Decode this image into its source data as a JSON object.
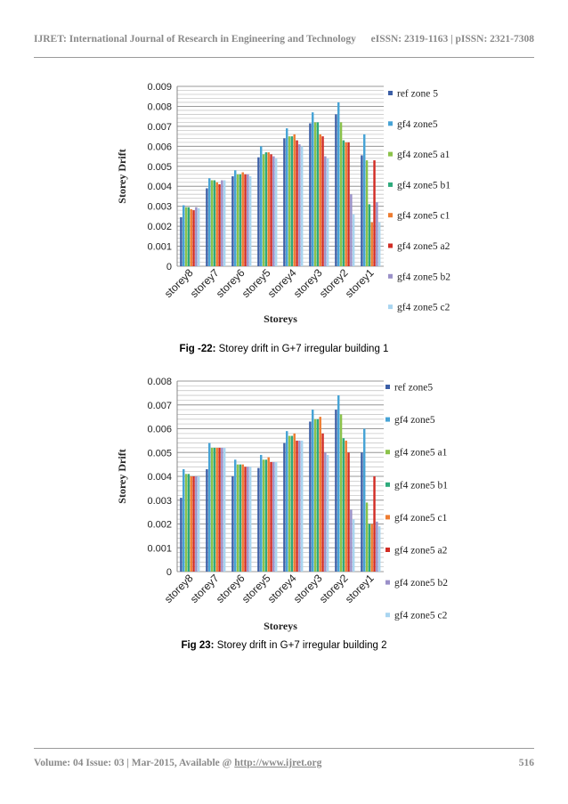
{
  "header": {
    "journal": "IJRET: International Journal of Research in Engineering and Technology",
    "issn": "eISSN: 2319-1163 | pISSN: 2321-7308"
  },
  "footer": {
    "volume_prefix": "Volume: 04 Issue: 03 | Mar-2015, Available @ ",
    "url": "http://www.ijret.org",
    "page": "516"
  },
  "chart_data": [
    {
      "type": "bar",
      "caption_label": "Fig -22:",
      "caption_text": " Storey drift in G+7 irregular building 1",
      "xlabel": "Storeys",
      "ylabel": "Storey Drift",
      "ylim": [
        0,
        0.009
      ],
      "ytick_step": 0.001,
      "yticks": [
        "0",
        "0.001",
        "0.002",
        "0.003",
        "0.004",
        "0.005",
        "0.006",
        "0.007",
        "0.008",
        "0.009"
      ],
      "grid": true,
      "legend": "right",
      "categories": [
        "storey8",
        "storey7",
        "storey6",
        "storey5",
        "storey4",
        "storey3",
        "storey2",
        "storey1"
      ],
      "series": [
        {
          "name": "ref zone 5",
          "color": "#3c5fa6",
          "values": [
            0.00245,
            0.0039,
            0.0045,
            0.00545,
            0.0064,
            0.00715,
            0.0076,
            0.00555
          ]
        },
        {
          "name": "gf4 zone5",
          "color": "#46a3d6",
          "values": [
            0.00305,
            0.0044,
            0.0048,
            0.006,
            0.0069,
            0.0077,
            0.0082,
            0.0066
          ]
        },
        {
          "name": "gf4 zone5 a1",
          "color": "#8cc34a",
          "values": [
            0.00295,
            0.0043,
            0.0046,
            0.0056,
            0.0065,
            0.0072,
            0.0072,
            0.0053
          ]
        },
        {
          "name": "gf4 zone5 b1",
          "color": "#2eaa7c",
          "values": [
            0.00295,
            0.0043,
            0.0046,
            0.0057,
            0.0065,
            0.0072,
            0.0063,
            0.0031
          ]
        },
        {
          "name": "gf4 zone5 c1",
          "color": "#ee7c30",
          "values": [
            0.00285,
            0.0042,
            0.0047,
            0.0057,
            0.0066,
            0.0066,
            0.0062,
            0.0022
          ]
        },
        {
          "name": "gf4 zone5 a2",
          "color": "#d22d25",
          "values": [
            0.0028,
            0.0041,
            0.0046,
            0.0056,
            0.0063,
            0.0065,
            0.0062,
            0.0053
          ]
        },
        {
          "name": "gf4 zone5 b2",
          "color": "#9a90c8",
          "values": [
            0.00295,
            0.0043,
            0.0046,
            0.0055,
            0.0061,
            0.0055,
            0.0036,
            0.0032
          ]
        },
        {
          "name": "gf4 zone5 c2",
          "color": "#a9d5f0",
          "values": [
            0.0029,
            0.0043,
            0.0045,
            0.0054,
            0.006,
            0.0054,
            0.0026,
            0.0022
          ]
        }
      ]
    },
    {
      "type": "bar",
      "caption_label": "Fig 23:",
      "caption_text": "  Storey drift in G+7 irregular building 2",
      "xlabel": "Storeys",
      "ylabel": "Storey Drift",
      "ylim": [
        0,
        0.008
      ],
      "ytick_step": 0.001,
      "yticks": [
        "0",
        "0.001",
        "0.002",
        "0.003",
        "0.004",
        "0.005",
        "0.006",
        "0.007",
        "0.008"
      ],
      "grid": true,
      "legend": "right",
      "categories": [
        "storey8",
        "storey7",
        "storey6",
        "storey5",
        "storey4",
        "storey3",
        "storey2",
        "storey1"
      ],
      "series": [
        {
          "name": "ref zone5",
          "color": "#3c5fa6",
          "values": [
            0.0031,
            0.0043,
            0.004,
            0.00435,
            0.0054,
            0.0063,
            0.0068,
            0.005
          ]
        },
        {
          "name": "gf4 zone5",
          "color": "#46a3d6",
          "values": [
            0.0043,
            0.0054,
            0.0047,
            0.0049,
            0.0059,
            0.0068,
            0.0074,
            0.006
          ]
        },
        {
          "name": "gf4 zone5 a1",
          "color": "#8cc34a",
          "values": [
            0.0041,
            0.0052,
            0.0045,
            0.0047,
            0.0057,
            0.0064,
            0.0066,
            0.0029
          ]
        },
        {
          "name": "gf4 zone5 b1",
          "color": "#2eaa7c",
          "values": [
            0.0041,
            0.0052,
            0.0045,
            0.0047,
            0.0057,
            0.0064,
            0.0056,
            0.002
          ]
        },
        {
          "name": "gf4 zone5 c1",
          "color": "#ee7c30",
          "values": [
            0.004,
            0.0052,
            0.0045,
            0.0048,
            0.0058,
            0.0065,
            0.0055,
            0.002
          ]
        },
        {
          "name": "gf4 zone5 a2",
          "color": "#d22d25",
          "values": [
            0.004,
            0.0052,
            0.0044,
            0.0046,
            0.0055,
            0.0058,
            0.005,
            0.004
          ]
        },
        {
          "name": "gf4 zone5 b2",
          "color": "#9a90c8",
          "values": [
            0.004,
            0.0052,
            0.0044,
            0.0046,
            0.0055,
            0.005,
            0.0026,
            0.0021
          ]
        },
        {
          "name": "gf4 zone5 c2",
          "color": "#a9d5f0",
          "values": [
            0.004,
            0.0052,
            0.0044,
            0.0046,
            0.0055,
            0.0049,
            0.0022,
            0.0019
          ]
        }
      ]
    }
  ]
}
